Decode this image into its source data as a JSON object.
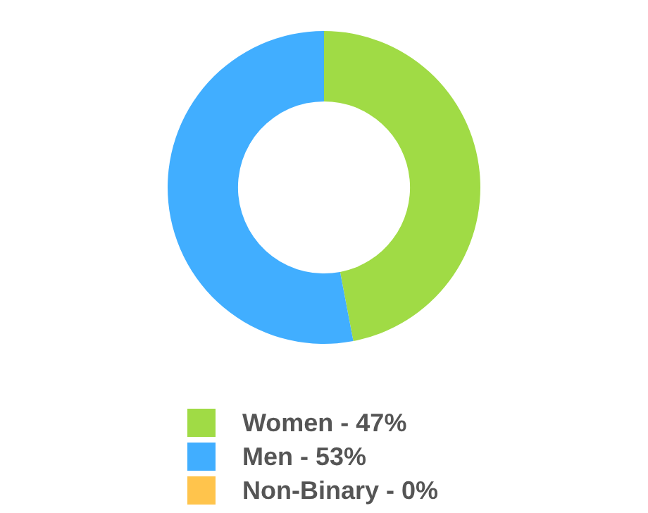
{
  "chart_data": {
    "type": "donut",
    "categories": [
      "Women - 47%",
      "Men - 53%",
      "Non-Binary - 0%"
    ],
    "values": [
      47,
      53,
      0
    ],
    "colors": [
      "#a0db45",
      "#41aeff",
      "#ffc44c"
    ],
    "legend": "bottom"
  }
}
